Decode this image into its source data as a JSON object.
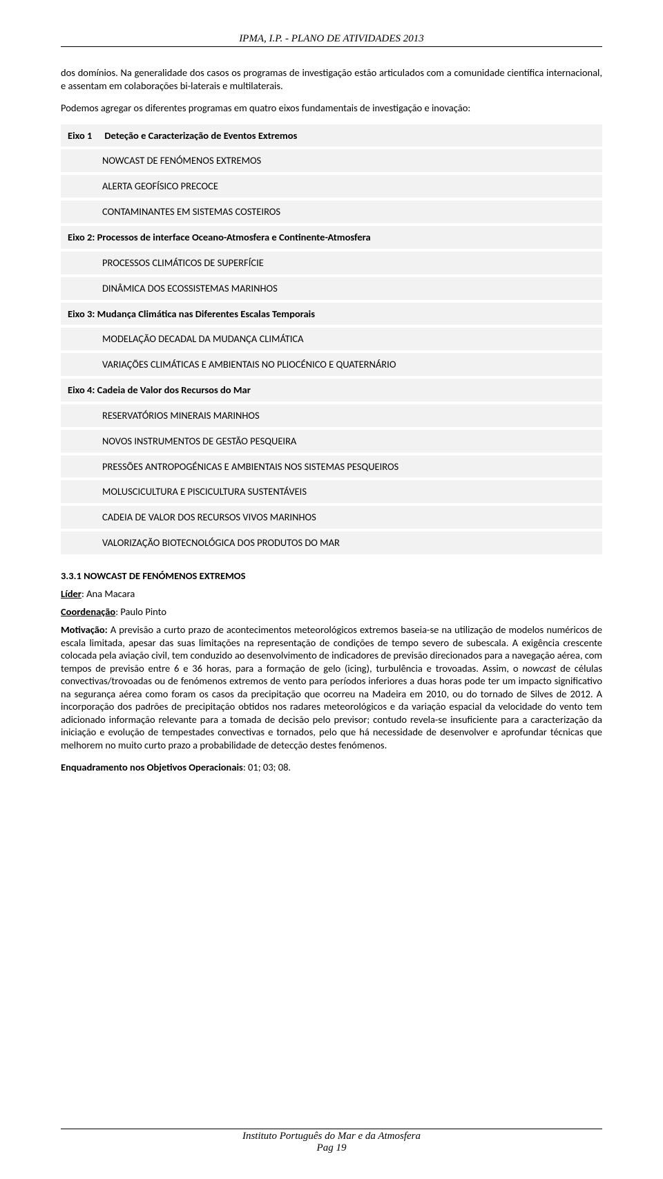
{
  "header": {
    "title": "IPMA, I.P. - PLANO DE ATIVIDADES 2013"
  },
  "para1": "dos domínios. Na generalidade dos casos os programas de investigação estão articulados com a comunidade científica internacional, e assentam em colaborações bi-laterais e multilaterais.",
  "para2": "Podemos agregar os diferentes programas em quatro eixos fundamentais de investigação e inovação:",
  "axes": {
    "eixo1_label": "Eixo 1",
    "eixo1_title": "Deteção e Caracterização de Eventos Extremos",
    "eixo1_items": {
      "i1": "NOWCAST DE FENÓMENOS EXTREMOS",
      "i2": "ALERTA GEOFÍSICO PRECOCE",
      "i3": "CONTAMINANTES EM SISTEMAS COSTEIROS"
    },
    "eixo2_title": "Eixo 2: Processos de interface Oceano-Atmosfera e Continente-Atmosfera",
    "eixo2_items": {
      "i1": "PROCESSOS CLIMÁTICOS DE SUPERFÍCIE",
      "i2": "DINÂMICA DOS ECOSSISTEMAS MARINHOS"
    },
    "eixo3_title": "Eixo 3: Mudança Climática nas Diferentes Escalas Temporais",
    "eixo3_items": {
      "i1": "MODELAÇÃO DECADAL DA MUDANÇA CLIMÁTICA",
      "i2": "VARIAÇÕES CLIMÁTICAS E AMBIENTAIS NO PLIOCÉNICO E QUATERNÁRIO"
    },
    "eixo4_title": "Eixo 4: Cadeia de Valor dos Recursos do Mar",
    "eixo4_items": {
      "i1": "RESERVATÓRIOS MINERAIS MARINHOS",
      "i2": "NOVOS INSTRUMENTOS DE GESTÃO PESQUEIRA",
      "i3": "PRESSÕES ANTROPOGÉNICAS E AMBIENTAIS NOS SISTEMAS PESQUEIROS",
      "i4": "MOLUSCICULTURA E PISCICULTURA SUSTENTÁVEIS",
      "i5": "CADEIA DE VALOR DOS RECURSOS VIVOS MARINHOS",
      "i6": "VALORIZAÇÃO BIOTECNOLÓGICA DOS PRODUTOS DO MAR"
    }
  },
  "section331": {
    "heading": "3.3.1 NOWCAST DE FENÓMENOS EXTREMOS",
    "lider_label": "Líder",
    "lider_value": ": Ana Macara",
    "coord_label": "Coordenação",
    "coord_value": ": Paulo Pinto",
    "motiv_label": "Motivação:",
    "motiv_body": "A previsão a curto prazo de acontecimentos meteorológicos extremos baseia-se na utilização de modelos numéricos de escala limitada, apesar das suas limitações na representação de condições de tempo severo de subescala. A exigência crescente colocada pela aviação civil, tem conduzido ao desenvolvimento de indicadores de previsão direcionados para a navegação aérea, com tempos de previsão entre 6 e 36 horas, para a formação de gelo (icing), turbulência e trovoadas. Assim, o ",
    "motiv_italic": "nowcast",
    "motiv_body2": " de células convectivas/trovoadas ou de fenómenos extremos de vento para períodos inferiores a duas horas pode ter um impacto significativo na segurança aérea como foram os casos da precipitação que ocorreu na Madeira em 2010, ou do tornado de Silves de 2012. A incorporação dos padrões de precipitação obtidos nos radares meteorológicos e da variação espacial da velocidade do vento tem adicionado informação relevante para a tomada de decisão pelo previsor; contudo revela-se insuficiente para a caracterização da iniciação e evolução de tempestades convectivas e tornados, pelo que há necessidade de desenvolver e aprofundar técnicas que melhorem no muito curto prazo a probabilidade de detecção destes fenómenos.",
    "enq_label": "Enquadramento nos Objetivos Operacionais",
    "enq_value": ": 01; 03; 08."
  },
  "footer": {
    "org": "Instituto Português do Mar e da Atmosfera",
    "page_label": "Pag 19"
  }
}
